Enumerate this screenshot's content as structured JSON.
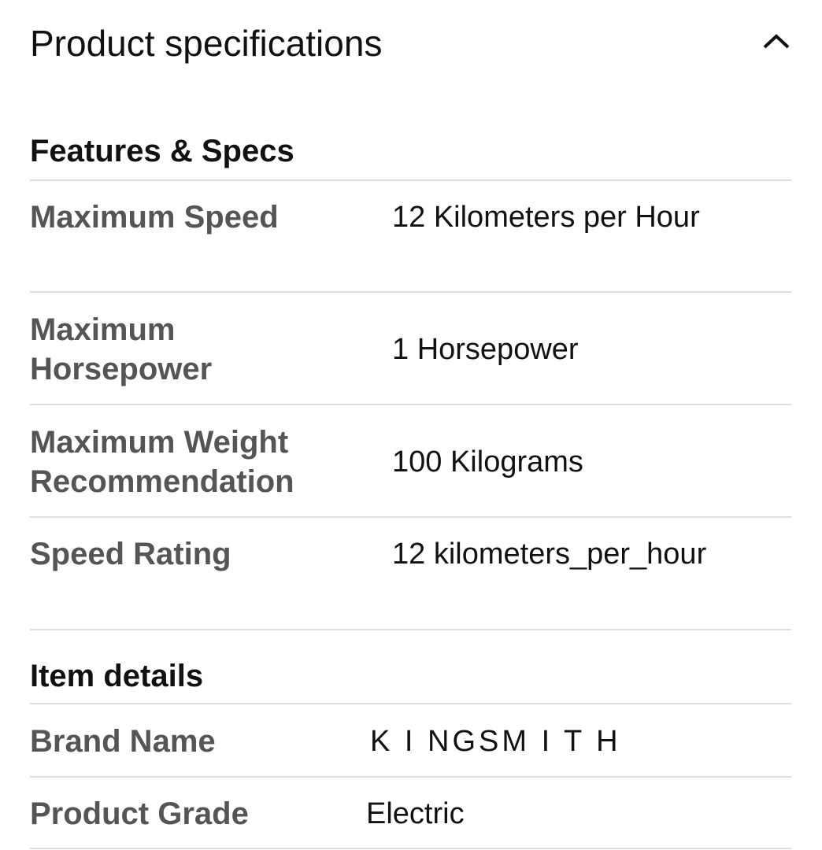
{
  "header": {
    "title": "Product specifications",
    "toggle_icon": "chevron-up-icon"
  },
  "sections": [
    {
      "title": "Features & Specs",
      "rows": [
        {
          "label": "Maximum Speed",
          "value": "12 Kilometers per Hour"
        },
        {
          "label": "Maximum Horsepower",
          "value": "1 Horsepower"
        },
        {
          "label": "Maximum Weight Recommendation",
          "value": "100 Kilograms"
        },
        {
          "label": "Speed Rating",
          "value": "12 kilometers_per_hour"
        }
      ]
    },
    {
      "title": "Item details",
      "rows": [
        {
          "label": "Brand Name",
          "value": "K I NGSM I T H"
        },
        {
          "label": "Product Grade",
          "value": "Electric"
        }
      ]
    }
  ]
}
